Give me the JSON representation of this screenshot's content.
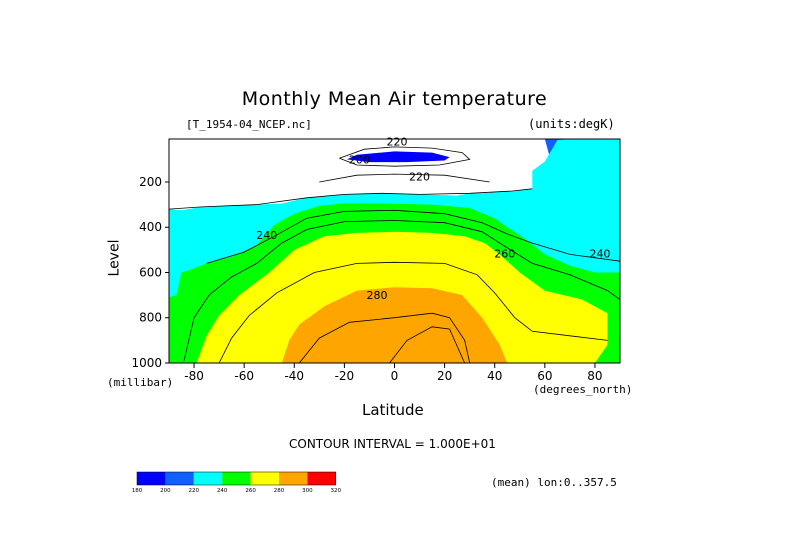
{
  "chart_data": {
    "type": "heatmap",
    "title": "Monthly Mean Air temperature",
    "file_label": "[T_1954-04_NCEP.nc]",
    "units_label": "(units:degK)",
    "xlabel": "Latitude",
    "x_unit_label": "(degrees_north)",
    "ylabel": "Level",
    "y_unit_label": "(millibar)",
    "xlim": [
      -90,
      90
    ],
    "ylim": [
      1000,
      10
    ],
    "x_ticks": [
      -80,
      -60,
      -40,
      -20,
      0,
      20,
      40,
      60,
      80
    ],
    "y_ticks": [
      200,
      400,
      600,
      800,
      1000
    ],
    "contour_interval_text": "CONTOUR INTERVAL = 1.000E+01",
    "footer_note": "(mean) lon:0..357.5",
    "colorbar": {
      "levels": [
        180,
        200,
        220,
        240,
        260,
        280,
        300,
        320
      ],
      "colors": [
        "#0000ff",
        "#1060ff",
        "#00ffff",
        "#00ff00",
        "#ffff00",
        "#ffa500",
        "#ff0000"
      ]
    },
    "contour_labels": [
      {
        "text": "220",
        "x": 1,
        "y": 20
      },
      {
        "text": "200",
        "x": -14,
        "y": 100
      },
      {
        "text": "220",
        "x": 10,
        "y": 175
      },
      {
        "text": "240",
        "x": -51,
        "y": 435
      },
      {
        "text": "260",
        "x": 44,
        "y": 515
      },
      {
        "text": "240",
        "x": 82,
        "y": 515
      },
      {
        "text": "280",
        "x": -7,
        "y": 700
      }
    ],
    "regions": [
      {
        "value": 210,
        "color": "#1060ff",
        "boundary": [
          [
            -90,
            10
          ],
          [
            60,
            10
          ],
          [
            62,
            90
          ],
          [
            67,
            170
          ],
          [
            70,
            210
          ],
          [
            75,
            240
          ],
          [
            80,
            250
          ],
          [
            85,
            250
          ],
          [
            90,
            240
          ],
          [
            90,
            10
          ]
        ]
      },
      {
        "value": 230,
        "color": "#00ffff",
        "boundary": [
          [
            -90,
            1000
          ],
          [
            -90,
            320
          ],
          [
            -85,
            325
          ],
          [
            -77,
            310
          ],
          [
            -65,
            305
          ],
          [
            -55,
            300
          ],
          [
            -45,
            295
          ],
          [
            -35,
            270
          ],
          [
            -20,
            255
          ],
          [
            -5,
            250
          ],
          [
            10,
            255
          ],
          [
            25,
            260
          ],
          [
            30,
            250
          ],
          [
            35,
            250
          ],
          [
            47,
            240
          ],
          [
            55,
            230
          ],
          [
            55,
            150
          ],
          [
            60,
            110
          ],
          [
            65,
            15
          ],
          [
            70,
            10
          ],
          [
            90,
            10
          ],
          [
            90,
            1000
          ]
        ]
      },
      {
        "value": 200,
        "color": "#0000ff",
        "boundary": [
          [
            -19,
            100
          ],
          [
            -15,
            80
          ],
          [
            0,
            65
          ],
          [
            15,
            70
          ],
          [
            22,
            90
          ],
          [
            20,
            105
          ],
          [
            5,
            112
          ],
          [
            -10,
            112
          ]
        ]
      },
      {
        "value": 250,
        "color": "#00ff00",
        "boundary": [
          [
            -90,
            1000
          ],
          [
            -90,
            710
          ],
          [
            -87,
            700
          ],
          [
            -85,
            600
          ],
          [
            -82,
            590
          ],
          [
            -75,
            560
          ],
          [
            -65,
            530
          ],
          [
            -55,
            480
          ],
          [
            -48,
            390
          ],
          [
            -40,
            340
          ],
          [
            -30,
            305
          ],
          [
            -20,
            295
          ],
          [
            -5,
            295
          ],
          [
            15,
            300
          ],
          [
            30,
            315
          ],
          [
            40,
            360
          ],
          [
            45,
            400
          ],
          [
            52,
            450
          ],
          [
            60,
            520
          ],
          [
            70,
            570
          ],
          [
            80,
            600
          ],
          [
            90,
            600
          ],
          [
            90,
            1000
          ]
        ]
      },
      {
        "value": 270,
        "color": "#ffff00",
        "boundary": [
          [
            -79,
            1000
          ],
          [
            -75,
            880
          ],
          [
            -70,
            790
          ],
          [
            -62,
            700
          ],
          [
            -50,
            600
          ],
          [
            -40,
            500
          ],
          [
            -28,
            440
          ],
          [
            -15,
            425
          ],
          [
            0,
            420
          ],
          [
            15,
            425
          ],
          [
            28,
            440
          ],
          [
            36,
            470
          ],
          [
            42,
            520
          ],
          [
            50,
            600
          ],
          [
            60,
            680
          ],
          [
            75,
            720
          ],
          [
            85,
            780
          ],
          [
            85,
            920
          ],
          [
            80,
            1000
          ]
        ]
      },
      {
        "value": 290,
        "color": "#ffa500",
        "boundary": [
          [
            -45,
            1000
          ],
          [
            -42,
            900
          ],
          [
            -38,
            830
          ],
          [
            -28,
            750
          ],
          [
            -15,
            680
          ],
          [
            0,
            665
          ],
          [
            15,
            670
          ],
          [
            27,
            700
          ],
          [
            35,
            800
          ],
          [
            42,
            920
          ],
          [
            45,
            1000
          ]
        ]
      }
    ],
    "contour_lines": [
      [
        [
          -90,
          320
        ],
        [
          -77,
          310
        ],
        [
          -55,
          300
        ],
        [
          -35,
          270
        ],
        [
          -20,
          255
        ],
        [
          -5,
          250
        ],
        [
          10,
          255
        ],
        [
          30,
          250
        ],
        [
          47,
          240
        ],
        [
          55,
          230
        ]
      ],
      [
        [
          -30,
          200
        ],
        [
          -15,
          170
        ],
        [
          0,
          165
        ],
        [
          20,
          170
        ],
        [
          38,
          200
        ]
      ],
      [
        [
          -22,
          95
        ],
        [
          -12,
          55
        ],
        [
          0,
          45
        ],
        [
          15,
          50
        ],
        [
          27,
          70
        ],
        [
          30,
          100
        ],
        [
          18,
          125
        ],
        [
          0,
          130
        ],
        [
          -15,
          125
        ],
        [
          -22,
          95
        ]
      ],
      [
        [
          -75,
          560
        ],
        [
          -60,
          510
        ],
        [
          -48,
          440
        ],
        [
          -35,
          360
        ],
        [
          -20,
          330
        ],
        [
          0,
          325
        ],
        [
          20,
          340
        ],
        [
          35,
          380
        ],
        [
          45,
          430
        ],
        [
          55,
          470
        ],
        [
          70,
          520
        ],
        [
          90,
          550
        ]
      ],
      [
        [
          -84,
          990
        ],
        [
          -80,
          800
        ],
        [
          -74,
          700
        ],
        [
          -65,
          620
        ],
        [
          -55,
          560
        ],
        [
          -45,
          470
        ],
        [
          -35,
          410
        ],
        [
          -20,
          375
        ],
        [
          0,
          370
        ],
        [
          20,
          380
        ],
        [
          35,
          420
        ],
        [
          42,
          470
        ],
        [
          55,
          560
        ],
        [
          70,
          610
        ],
        [
          85,
          680
        ],
        [
          90,
          720
        ]
      ],
      [
        [
          -70,
          1000
        ],
        [
          -65,
          890
        ],
        [
          -58,
          790
        ],
        [
          -47,
          690
        ],
        [
          -32,
          600
        ],
        [
          -15,
          560
        ],
        [
          0,
          555
        ],
        [
          20,
          560
        ],
        [
          33,
          610
        ],
        [
          40,
          690
        ],
        [
          48,
          800
        ],
        [
          55,
          860
        ],
        [
          70,
          880
        ],
        [
          85,
          900
        ]
      ],
      [
        [
          -38,
          1000
        ],
        [
          -30,
          890
        ],
        [
          -18,
          820
        ],
        [
          0,
          800
        ],
        [
          15,
          780
        ],
        [
          22,
          800
        ],
        [
          28,
          900
        ],
        [
          30,
          1000
        ]
      ],
      [
        [
          -2,
          1000
        ],
        [
          5,
          900
        ],
        [
          15,
          840
        ],
        [
          22,
          850
        ],
        [
          26,
          950
        ],
        [
          28,
          1000
        ]
      ]
    ]
  }
}
